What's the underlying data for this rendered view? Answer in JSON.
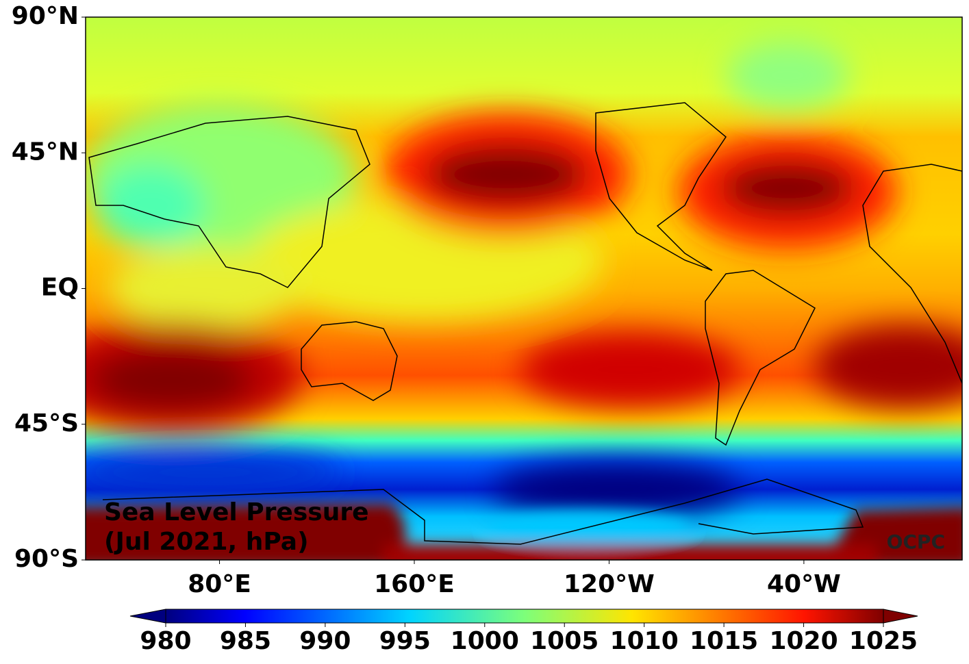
{
  "map": {
    "title_lines": [
      "Sea Level Pressure",
      "(Jul 2021, hPa)"
    ],
    "credit": "OCPC",
    "latlim": [
      -90,
      90
    ],
    "lonlim": [
      25,
      385
    ],
    "lat_ticks": [
      {
        "value": 90,
        "label": "90°N"
      },
      {
        "value": 45,
        "label": "45°N"
      },
      {
        "value": 0,
        "label": "EQ"
      },
      {
        "value": -45,
        "label": "45°S"
      },
      {
        "value": -90,
        "label": "90°S"
      }
    ],
    "lon_ticks": [
      {
        "value": 80,
        "label": "80°E"
      },
      {
        "value": 160,
        "label": "160°E"
      },
      {
        "value": 240,
        "label": "120°W"
      },
      {
        "value": 320,
        "label": "40°W"
      }
    ],
    "colorbar": {
      "clim": [
        980,
        1025
      ],
      "ticks": [
        980,
        985,
        990,
        995,
        1000,
        1005,
        1010,
        1015,
        1020,
        1025
      ],
      "colormap": "jet"
    }
  }
}
